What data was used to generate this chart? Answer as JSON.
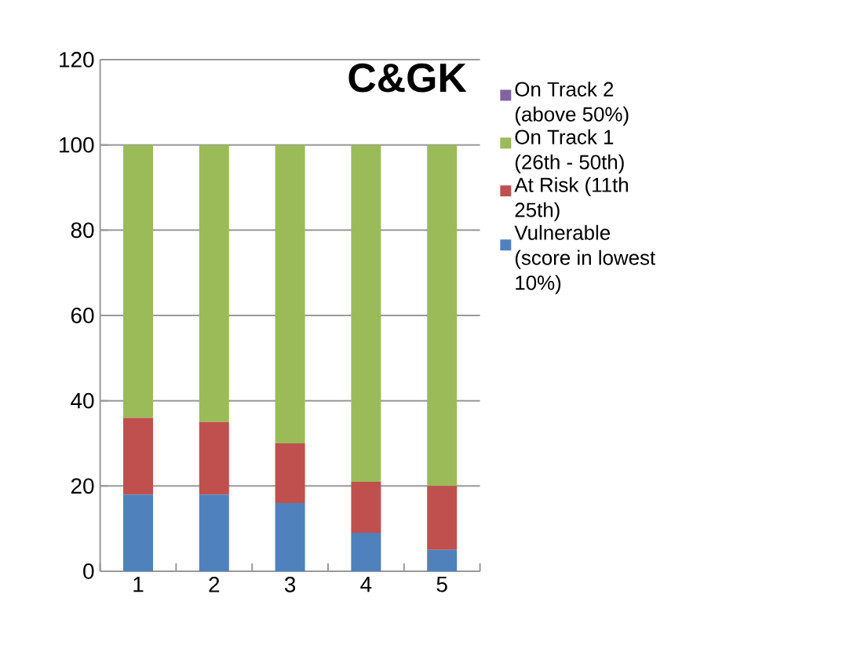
{
  "chart_data": {
    "type": "bar",
    "stacked": true,
    "title": "C&GK",
    "categories": [
      "1",
      "2",
      "3",
      "4",
      "5"
    ],
    "series": [
      {
        "name": "Vulnerable (score in lowest 10%)",
        "color": "#4f81bd",
        "values": [
          18,
          18,
          16,
          9,
          5
        ]
      },
      {
        "name": "At Risk (11th 25th)",
        "color": "#c0504d",
        "values": [
          18,
          17,
          14,
          12,
          15
        ]
      },
      {
        "name": "On Track 1 (26th - 50th)",
        "color": "#9bbb59",
        "values": [
          64,
          65,
          70,
          79,
          80
        ]
      },
      {
        "name": "On Track 2 (above 50%)",
        "color": "#8064a2",
        "values": [
          0,
          0,
          0,
          0,
          0
        ]
      }
    ],
    "ylim": [
      0,
      120
    ],
    "yticks": [
      0,
      20,
      40,
      60,
      80,
      100,
      120
    ],
    "grid": "y",
    "legend": "right"
  }
}
